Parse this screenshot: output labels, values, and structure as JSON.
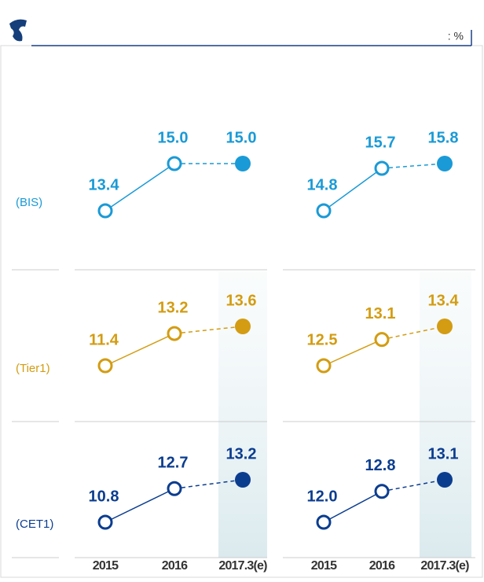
{
  "chart_data": {
    "type": "line",
    "unit": ": %",
    "categories": [
      "2015",
      "2016",
      "2017.3(e)"
    ],
    "rows": [
      {
        "label": "(BIS)",
        "color": "#1a9ad6",
        "panels": [
          {
            "values": [
              13.4,
              15.0,
              15.0
            ],
            "value_labels": [
              "13.4",
              "15.0",
              "15.0"
            ]
          },
          {
            "values": [
              14.8,
              15.7,
              15.8
            ],
            "value_labels": [
              "14.8",
              "15.7",
              "15.8"
            ]
          }
        ]
      },
      {
        "label": "(Tier1)",
        "color": "#d39c12",
        "panels": [
          {
            "values": [
              11.4,
              13.2,
              13.6
            ],
            "value_labels": [
              "11.4",
              "13.2",
              "13.6"
            ]
          },
          {
            "values": [
              12.5,
              13.1,
              13.4
            ],
            "value_labels": [
              "12.5",
              "13.1",
              "13.4"
            ]
          }
        ]
      },
      {
        "label": "(CET1)",
        "color": "#0b3d8f",
        "panels": [
          {
            "values": [
              10.8,
              12.7,
              13.2
            ],
            "value_labels": [
              "10.8",
              "12.7",
              "13.2"
            ]
          },
          {
            "values": [
              12.0,
              12.8,
              13.1
            ],
            "value_labels": [
              "12.0",
              "12.8",
              "13.1"
            ]
          }
        ]
      }
    ]
  }
}
